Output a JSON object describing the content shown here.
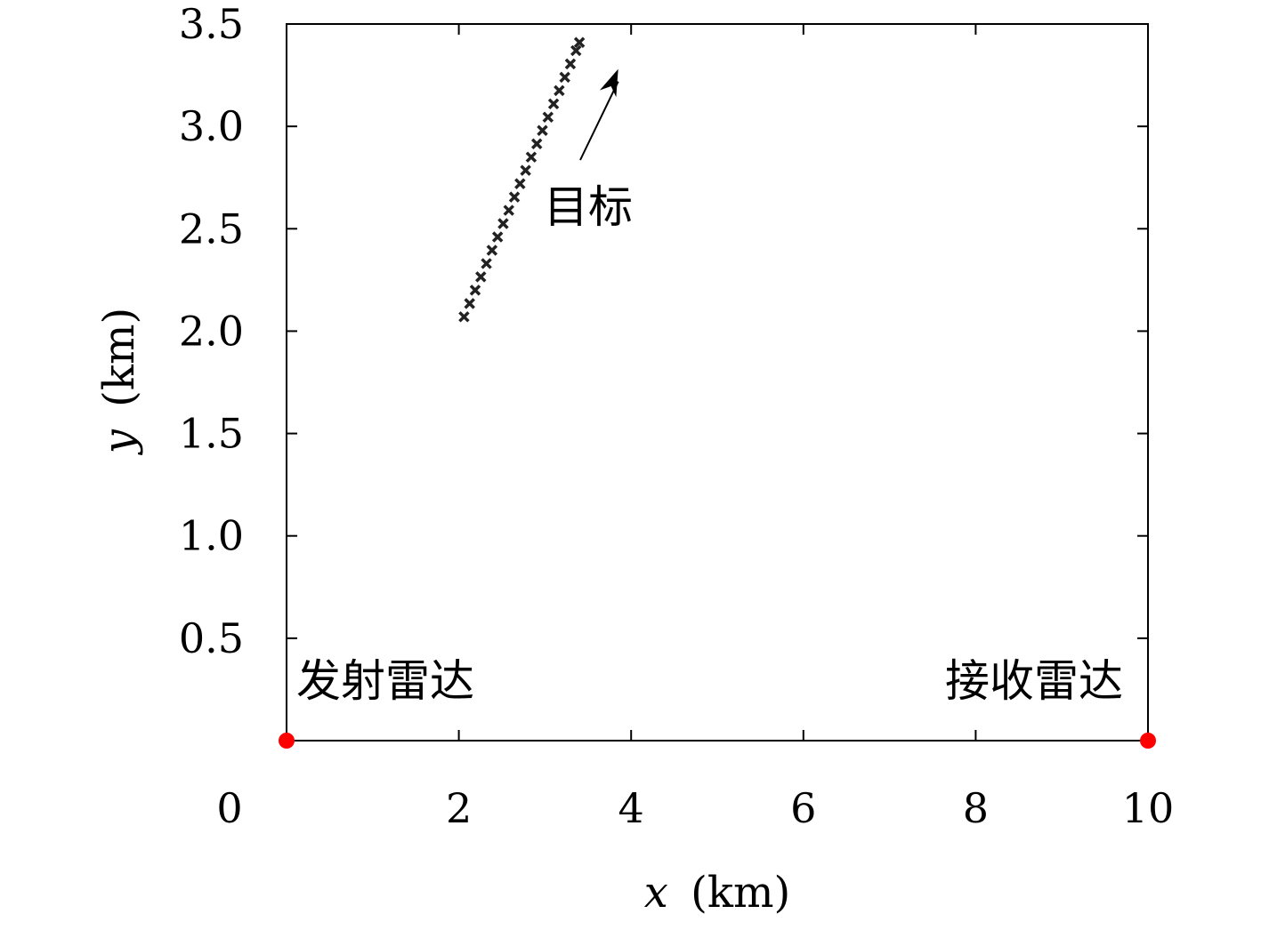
{
  "chart_data": {
    "type": "scatter",
    "xlabel_var": "x",
    "xlabel_unit": "(km)",
    "ylabel_var": "y",
    "ylabel_unit": "(km)",
    "xlim": [
      0,
      10
    ],
    "ylim": [
      0,
      3.5
    ],
    "x_ticks": [
      0,
      2,
      4,
      6,
      8,
      10
    ],
    "y_ticks": [
      0.5,
      1.0,
      1.5,
      2.0,
      2.5,
      3.0,
      3.5
    ],
    "x_tick_labels": [
      "0",
      "2",
      "4",
      "6",
      "8",
      "10"
    ],
    "y_tick_labels": [
      "0.5",
      "1.0",
      "1.5",
      "2.0",
      "2.5",
      "3.0",
      "3.5"
    ],
    "grid": false,
    "target_track": {
      "marker": "x",
      "color": "#222222",
      "x": [
        2.06,
        2.125,
        2.19,
        2.255,
        2.32,
        2.385,
        2.45,
        2.515,
        2.58,
        2.645,
        2.71,
        2.775,
        2.84,
        2.905,
        2.97,
        3.035,
        3.1,
        3.165,
        3.23,
        3.295,
        3.36,
        3.4
      ],
      "y": [
        2.07,
        2.135,
        2.2,
        2.265,
        2.33,
        2.395,
        2.46,
        2.525,
        2.59,
        2.655,
        2.72,
        2.785,
        2.85,
        2.915,
        2.98,
        3.045,
        3.11,
        3.175,
        3.24,
        3.305,
        3.37,
        3.41
      ]
    },
    "radars": [
      {
        "label": "发射雷达",
        "x": 0,
        "y": 0,
        "color": "#ff0000"
      },
      {
        "label": "接收雷达",
        "x": 10,
        "y": 0,
        "color": "#ff0000"
      }
    ],
    "annotations": [
      {
        "text": "目标",
        "x": 3.0,
        "y": 2.6,
        "arrow_to": [
          3.85,
          3.28
        ]
      }
    ]
  }
}
